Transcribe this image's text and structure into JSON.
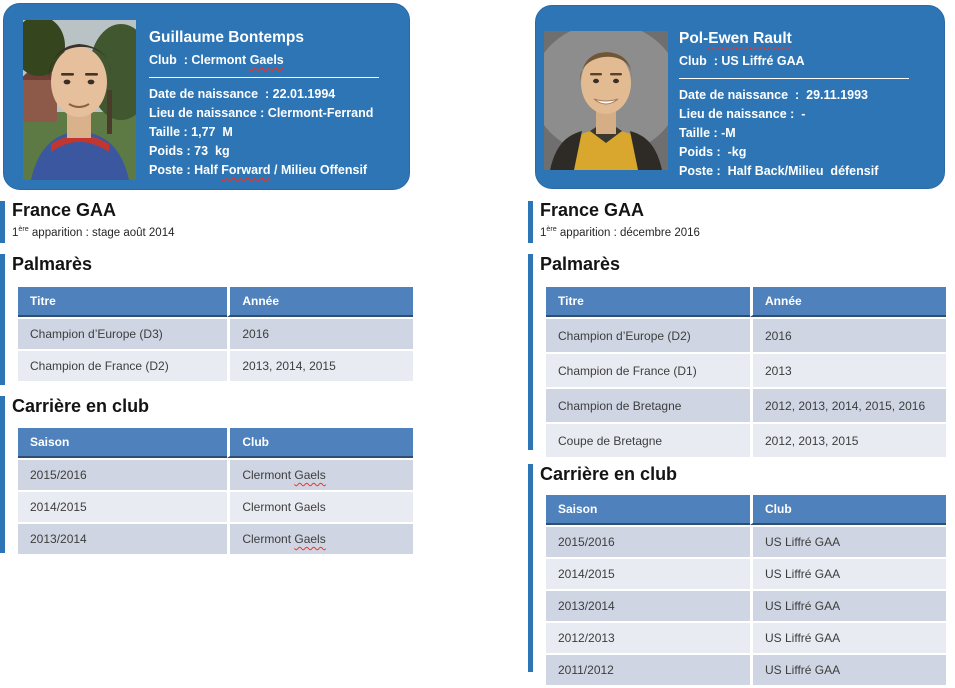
{
  "colors": {
    "card_blue": "#2e75b5",
    "table_header_blue": "#4f81bd",
    "row_shade_dark": "#cfd5e3",
    "row_shade_light": "#e9ebf2",
    "accent_bar_blue": "#2e75b5",
    "spellcheck_red": "#ee3423"
  },
  "players": [
    {
      "photo_name": "outdoor-portrait-photo",
      "name_segments": [
        {
          "t": "Guillaume Bontemps"
        }
      ],
      "club_segments": [
        {
          "t": "Club  : Clermont "
        },
        {
          "t": "Gaels",
          "sq": true
        }
      ],
      "info_lines": [
        [
          {
            "t": "Date de naissance  : 22.01.1994"
          }
        ],
        [
          {
            "t": "Lieu de naissance : Clermont-Ferrand"
          }
        ],
        [
          {
            "t": "Taille : 1,77  M"
          }
        ],
        [
          {
            "t": "Poids : 73  kg"
          }
        ],
        [
          {
            "t": "Poste : Half "
          },
          {
            "t": "Forward",
            "sq": true
          },
          {
            "t": " / Milieu Offensif"
          }
        ]
      ],
      "national": {
        "title": "France GAA",
        "first_appearance_segments": [
          {
            "t": "1"
          },
          {
            "t": "ère",
            "sup": true
          },
          {
            "t": " apparition : stage août 2014"
          }
        ]
      },
      "palmares": {
        "title": "Palmarès",
        "columns": [
          "Titre",
          "Année"
        ],
        "rows": [
          [
            [
              {
                "t": "Champion d’Europe (D3)"
              }
            ],
            [
              {
                "t": "2016"
              }
            ]
          ],
          [
            [
              {
                "t": "Champion de France (D2)"
              }
            ],
            [
              {
                "t": "2013, 2014, 2015"
              }
            ]
          ]
        ]
      },
      "career": {
        "title": "Carrière en club",
        "columns": [
          "Saison",
          "Club"
        ],
        "rows": [
          [
            [
              {
                "t": "2015/2016"
              }
            ],
            [
              {
                "t": "Clermont "
              },
              {
                "t": "Gaels",
                "sq": true
              }
            ]
          ],
          [
            [
              {
                "t": "2014/2015"
              }
            ],
            [
              {
                "t": "Clermont Gaels"
              }
            ]
          ],
          [
            [
              {
                "t": "2013/2014"
              }
            ],
            [
              {
                "t": "Clermont "
              },
              {
                "t": "Gaels",
                "sq": true
              }
            ]
          ]
        ]
      }
    },
    {
      "photo_name": "studio-portrait-photo",
      "name_segments": [
        {
          "t": "Pol-"
        },
        {
          "t": "Ewen Rault",
          "sq": true
        }
      ],
      "club_segments": [
        {
          "t": "Club  : US Liffré GAA"
        }
      ],
      "info_lines": [
        [
          {
            "t": "Date de naissance  :  29.11.1993"
          }
        ],
        [
          {
            "t": "Lieu de naissance :  -"
          }
        ],
        [
          {
            "t": "Taille : -M"
          }
        ],
        [
          {
            "t": "Poids :  -kg"
          }
        ],
        [
          {
            "t": "Poste :  Half Back/Milieu  défensif"
          }
        ]
      ],
      "national": {
        "title": "France GAA",
        "first_appearance_segments": [
          {
            "t": "1"
          },
          {
            "t": "ère",
            "sup": true
          },
          {
            "t": " apparition : décembre 2016"
          }
        ]
      },
      "palmares": {
        "title": "Palmarès",
        "columns": [
          "Titre",
          "Année"
        ],
        "rows": [
          [
            [
              {
                "t": "Champion d’Europe (D2)"
              }
            ],
            [
              {
                "t": "2016"
              }
            ]
          ],
          [
            [
              {
                "t": "Champion de France (D1)"
              }
            ],
            [
              {
                "t": "2013"
              }
            ]
          ],
          [
            [
              {
                "t": "Champion de Bretagne"
              }
            ],
            [
              {
                "t": "2012, 2013, 2014, 2015, 2016"
              }
            ]
          ],
          [
            [
              {
                "t": "Coupe de Bretagne"
              }
            ],
            [
              {
                "t": "2012, 2013, 2015"
              }
            ]
          ]
        ]
      },
      "career": {
        "title": "Carrière en club",
        "columns": [
          "Saison",
          "Club"
        ],
        "rows": [
          [
            [
              {
                "t": "2015/2016"
              }
            ],
            [
              {
                "t": "US Liffré GAA"
              }
            ]
          ],
          [
            [
              {
                "t": "2014/2015"
              }
            ],
            [
              {
                "t": "US Liffré GAA"
              }
            ]
          ],
          [
            [
              {
                "t": "2013/2014"
              }
            ],
            [
              {
                "t": "US Liffré GAA"
              }
            ]
          ],
          [
            [
              {
                "t": "2012/2013"
              }
            ],
            [
              {
                "t": "US Liffré GAA"
              }
            ]
          ],
          [
            [
              {
                "t": "2011/2012"
              }
            ],
            [
              {
                "t": "US Liffré GAA"
              }
            ]
          ]
        ]
      }
    }
  ]
}
